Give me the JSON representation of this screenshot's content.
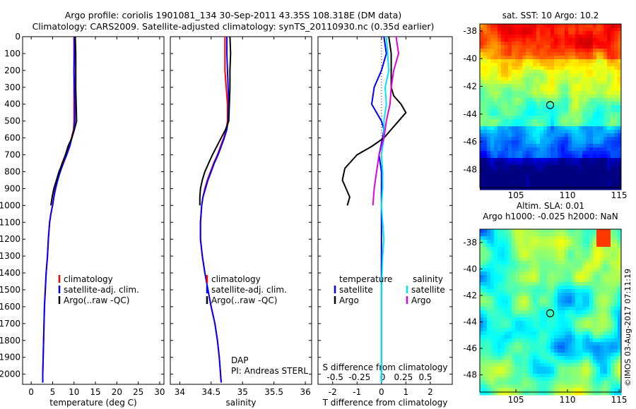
{
  "header": {
    "line1": "Argo profile: coriolis 1901081_134 30-Sep-2011 43.35S 108.318E (DM data)",
    "line2": "Climatology: CARS2009. Satellite-adjusted climatology: synTS_20110930.nc (0.35d earlier)"
  },
  "watermark": "©IMOS 03-Aug-2017 07:11:19",
  "depth_ticks": [
    0,
    100,
    200,
    300,
    400,
    500,
    600,
    700,
    800,
    900,
    1000,
    1100,
    1200,
    1300,
    1400,
    1500,
    1600,
    1700,
    1800,
    1900,
    2000
  ],
  "colors": {
    "climatology": "#ff0000",
    "satellite": "#0000ff",
    "argo": "#000000",
    "sat_salinity": "#00e5ff",
    "argo_salinity": "#e000e0",
    "dotted": "#0000ff"
  },
  "chart_data": [
    {
      "type": "line",
      "id": "temperature",
      "xlabel": "temperature (deg C)",
      "ylabel": "",
      "xlim": [
        -2,
        31
      ],
      "ylim": [
        2060,
        0
      ],
      "xticks": [
        0,
        5,
        10,
        15,
        20,
        25,
        30
      ],
      "legend": [
        "climatology",
        "satellite-adj. clim.",
        "Argo(..raw -QC)"
      ],
      "series": [
        {
          "name": "climatology",
          "color": "#ff0000",
          "points": [
            [
              10.0,
              0
            ],
            [
              10.0,
              100
            ],
            [
              10.0,
              200
            ],
            [
              10.0,
              300
            ],
            [
              10.0,
              400
            ],
            [
              10.0,
              500
            ],
            [
              9.9,
              550
            ],
            [
              9.4,
              600
            ],
            [
              8.8,
              650
            ],
            [
              8.0,
              700
            ],
            [
              7.2,
              750
            ],
            [
              6.6,
              800
            ],
            [
              6.1,
              850
            ],
            [
              5.6,
              900
            ],
            [
              5.3,
              950
            ],
            [
              5.0,
              1000
            ],
            [
              4.6,
              1050
            ],
            [
              4.3,
              1100
            ],
            [
              4.0,
              1200
            ],
            [
              3.8,
              1300
            ],
            [
              3.5,
              1400
            ],
            [
              3.3,
              1500
            ],
            [
              3.1,
              1600
            ],
            [
              3.0,
              1700
            ],
            [
              2.9,
              1800
            ],
            [
              2.8,
              1900
            ],
            [
              2.7,
              2000
            ],
            [
              2.7,
              2050
            ]
          ]
        },
        {
          "name": "satellite-adj. clim.",
          "color": "#0000ff",
          "points": [
            [
              10.1,
              0
            ],
            [
              10.1,
              100
            ],
            [
              10.0,
              200
            ],
            [
              10.1,
              300
            ],
            [
              10.2,
              400
            ],
            [
              10.2,
              500
            ],
            [
              10.0,
              550
            ],
            [
              9.5,
              600
            ],
            [
              9.0,
              650
            ],
            [
              8.3,
              700
            ],
            [
              7.5,
              750
            ],
            [
              6.8,
              800
            ],
            [
              6.2,
              850
            ],
            [
              5.7,
              900
            ],
            [
              5.3,
              950
            ],
            [
              5.0,
              1000
            ],
            [
              4.6,
              1050
            ],
            [
              4.3,
              1100
            ],
            [
              4.0,
              1200
            ],
            [
              3.8,
              1300
            ],
            [
              3.5,
              1400
            ],
            [
              3.3,
              1500
            ],
            [
              3.1,
              1600
            ],
            [
              3.0,
              1700
            ],
            [
              2.9,
              1800
            ],
            [
              2.8,
              1900
            ],
            [
              2.7,
              2000
            ],
            [
              2.7,
              2050
            ]
          ]
        },
        {
          "name": "Argo(..raw -QC)",
          "color": "#000000",
          "points": [
            [
              10.3,
              0
            ],
            [
              10.4,
              100
            ],
            [
              10.4,
              200
            ],
            [
              10.4,
              300
            ],
            [
              10.5,
              400
            ],
            [
              10.6,
              500
            ],
            [
              10.1,
              550
            ],
            [
              9.5,
              600
            ],
            [
              8.6,
              650
            ],
            [
              8.0,
              700
            ],
            [
              7.3,
              750
            ],
            [
              6.5,
              800
            ],
            [
              5.9,
              850
            ],
            [
              5.3,
              900
            ],
            [
              4.9,
              950
            ],
            [
              4.6,
              1000
            ]
          ]
        }
      ]
    },
    {
      "type": "line",
      "id": "salinity",
      "xlabel": "salinity",
      "ylabel": "",
      "xlim": [
        33.85,
        36.1
      ],
      "ylim": [
        2060,
        0
      ],
      "xticks": [
        34,
        34.5,
        35,
        35.5,
        36
      ],
      "legend": [
        "climatology",
        "satellite-adj. clim.",
        "Argo(..raw -QC)"
      ],
      "annotation": [
        "DAP",
        "PI: Andreas STERL"
      ],
      "series": [
        {
          "name": "climatology",
          "color": "#ff0000",
          "points": [
            [
              34.72,
              0
            ],
            [
              34.72,
              100
            ],
            [
              34.72,
              200
            ],
            [
              34.74,
              300
            ],
            [
              34.76,
              400
            ],
            [
              34.76,
              500
            ],
            [
              34.74,
              550
            ],
            [
              34.7,
              600
            ],
            [
              34.65,
              650
            ],
            [
              34.6,
              700
            ],
            [
              34.54,
              750
            ],
            [
              34.49,
              800
            ],
            [
              34.44,
              850
            ],
            [
              34.4,
              900
            ],
            [
              34.37,
              950
            ],
            [
              34.35,
              1000
            ],
            [
              34.33,
              1100
            ],
            [
              34.33,
              1200
            ],
            [
              34.36,
              1300
            ],
            [
              34.4,
              1400
            ],
            [
              34.45,
              1500
            ],
            [
              34.5,
              1600
            ],
            [
              34.56,
              1700
            ],
            [
              34.6,
              1800
            ],
            [
              34.63,
              1900
            ],
            [
              34.65,
              2000
            ],
            [
              34.66,
              2050
            ]
          ]
        },
        {
          "name": "satellite-adj. clim.",
          "color": "#0000ff",
          "points": [
            [
              34.75,
              0
            ],
            [
              34.75,
              100
            ],
            [
              34.76,
              200
            ],
            [
              34.77,
              300
            ],
            [
              34.78,
              400
            ],
            [
              34.77,
              500
            ],
            [
              34.75,
              550
            ],
            [
              34.71,
              600
            ],
            [
              34.66,
              650
            ],
            [
              34.61,
              700
            ],
            [
              34.55,
              750
            ],
            [
              34.5,
              800
            ],
            [
              34.45,
              850
            ],
            [
              34.41,
              900
            ],
            [
              34.37,
              950
            ],
            [
              34.35,
              1000
            ],
            [
              34.33,
              1100
            ],
            [
              34.33,
              1200
            ],
            [
              34.36,
              1300
            ],
            [
              34.4,
              1400
            ],
            [
              34.45,
              1500
            ],
            [
              34.5,
              1600
            ],
            [
              34.56,
              1700
            ],
            [
              34.6,
              1800
            ],
            [
              34.63,
              1900
            ],
            [
              34.65,
              2000
            ],
            [
              34.66,
              2050
            ]
          ]
        },
        {
          "name": "Argo(..raw -QC)",
          "color": "#000000",
          "points": [
            [
              34.8,
              0
            ],
            [
              34.81,
              100
            ],
            [
              34.8,
              200
            ],
            [
              34.8,
              300
            ],
            [
              34.79,
              400
            ],
            [
              34.78,
              500
            ],
            [
              34.73,
              550
            ],
            [
              34.66,
              600
            ],
            [
              34.59,
              650
            ],
            [
              34.52,
              700
            ],
            [
              34.46,
              750
            ],
            [
              34.4,
              800
            ],
            [
              34.36,
              850
            ],
            [
              34.33,
              900
            ],
            [
              34.32,
              950
            ],
            [
              34.32,
              1000
            ]
          ]
        }
      ]
    },
    {
      "type": "line",
      "id": "difference",
      "xlabel": "T difference from climatology",
      "toplabel": "S difference from climatology",
      "ylabel": "",
      "xlim": [
        -2.6,
        2.9
      ],
      "ylim": [
        2060,
        0
      ],
      "xticks": [
        -2,
        -1,
        0,
        1,
        2
      ],
      "sticks": [
        "-0.5",
        "-0.25",
        "0",
        "0.25",
        "0.5"
      ],
      "legend_headers": [
        "temperature",
        "salinity"
      ],
      "legend": [
        "satellite",
        "Argo",
        "satellite",
        "Argo"
      ],
      "series": [
        {
          "name": "satellite",
          "color": "#0000ff",
          "points": [
            [
              0.1,
              0
            ],
            [
              0.2,
              100
            ],
            [
              0.0,
              200
            ],
            [
              -0.3,
              300
            ],
            [
              -0.4,
              400
            ],
            [
              0.0,
              500
            ],
            [
              0.1,
              550
            ],
            [
              0.05,
              600
            ],
            [
              -0.1,
              700
            ],
            [
              0.0,
              800
            ],
            [
              0.0,
              900
            ],
            [
              0.0,
              1000
            ],
            [
              0.0,
              1100
            ],
            [
              0.0,
              1400
            ],
            [
              0.0,
              2050
            ]
          ]
        },
        {
          "name": "Argo",
          "color": "#000000",
          "points": [
            [
              0.3,
              0
            ],
            [
              0.4,
              100
            ],
            [
              0.4,
              200
            ],
            [
              0.4,
              300
            ],
            [
              0.5,
              350
            ],
            [
              0.8,
              400
            ],
            [
              1.0,
              450
            ],
            [
              0.4,
              550
            ],
            [
              0.1,
              600
            ],
            [
              -0.4,
              650
            ],
            [
              -1.0,
              700
            ],
            [
              -1.5,
              780
            ],
            [
              -1.6,
              850
            ],
            [
              -1.3,
              950
            ],
            [
              -1.4,
              1000
            ]
          ]
        },
        {
          "name": "satellite",
          "color": "#00e5ff",
          "points": [
            [
              0.2,
              0
            ],
            [
              0.25,
              100
            ],
            [
              0.3,
              200
            ],
            [
              0.15,
              300
            ],
            [
              0.2,
              400
            ],
            [
              0.1,
              500
            ],
            [
              0.1,
              600
            ],
            [
              0.0,
              700
            ],
            [
              0.05,
              800
            ],
            [
              0.05,
              900
            ],
            [
              0.0,
              1000
            ],
            [
              0.05,
              1100
            ],
            [
              0.1,
              1200
            ],
            [
              0.05,
              1300
            ],
            [
              0.0,
              1500
            ],
            [
              0.0,
              2050
            ]
          ]
        },
        {
          "name": "Argo",
          "color": "#e000e0",
          "points": [
            [
              0.6,
              0
            ],
            [
              0.7,
              100
            ],
            [
              0.5,
              200
            ],
            [
              0.4,
              300
            ],
            [
              0.35,
              400
            ],
            [
              0.2,
              500
            ],
            [
              0.1,
              600
            ],
            [
              -0.1,
              700
            ],
            [
              -0.2,
              800
            ],
            [
              -0.3,
              900
            ],
            [
              -0.35,
              1000
            ]
          ]
        }
      ]
    },
    {
      "type": "heatmap",
      "id": "sst-map",
      "title": "sat. SST: 10 Argo: 10.2",
      "xlim": [
        101.5,
        115.2
      ],
      "ylim": [
        -49.3,
        -37.5
      ],
      "xticks": [
        105,
        110,
        115
      ],
      "yticks": [
        -38,
        -40,
        -42,
        -44,
        -46,
        -48
      ],
      "marker": {
        "lon": 108.318,
        "lat": -43.35
      }
    },
    {
      "type": "heatmap",
      "id": "sla-map",
      "title": "Altim. SLA: 0.01",
      "subtitle": "Argo h1000: -0.025 h2000: NaN",
      "xlim": [
        101.5,
        115.2
      ],
      "ylim": [
        -49.3,
        -37.0
      ],
      "xticks": [
        105,
        110,
        115
      ],
      "yticks": [
        -38,
        -40,
        -42,
        -44,
        -46,
        -48
      ],
      "marker": {
        "lon": 108.318,
        "lat": -43.35
      }
    }
  ]
}
